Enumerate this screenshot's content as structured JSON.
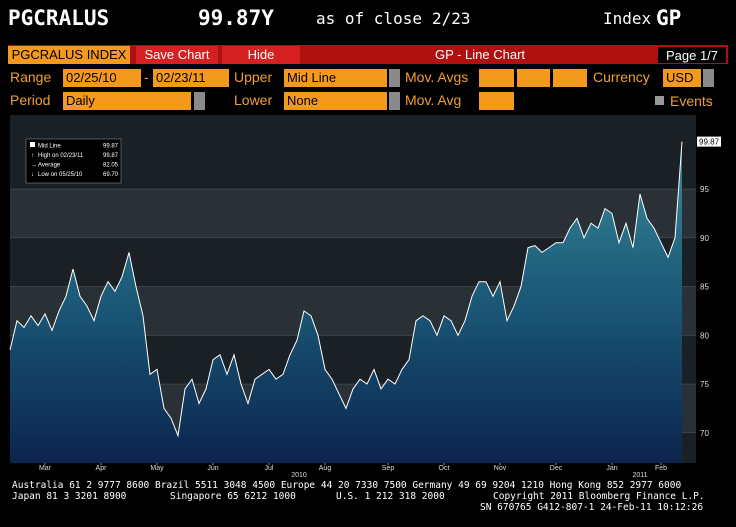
{
  "header": {
    "ticker": "PGCRALUS",
    "price": "99.87Y",
    "as_of": "as of close",
    "date": "2/23",
    "index_label": "Index",
    "index_code": "GP"
  },
  "toolbar": {
    "security": "PGCRALUS INDEX",
    "save": "Save Chart",
    "hide": "Hide",
    "title": "GP - Line Chart",
    "page": "Page 1/7"
  },
  "controls": {
    "range_label": "Range",
    "range_start": "02/25/10",
    "range_sep": "-",
    "range_end": "02/23/11",
    "upper_label": "Upper",
    "upper": "Mid Line",
    "mov_avgs_label": "Mov. Avgs",
    "currency_label": "Currency",
    "currency": "USD",
    "period_label": "Period",
    "period": "Daily",
    "lower_label": "Lower",
    "lower": "None",
    "mov_avg_label": "Mov. Avg",
    "events_label": "Events"
  },
  "chart_data": {
    "type": "line",
    "categories": [
      null,
      null,
      null,
      null,
      null,
      "Mar",
      null,
      null,
      null,
      null,
      null,
      null,
      null,
      "Apr",
      null,
      null,
      null,
      null,
      null,
      null,
      null,
      "May",
      null,
      null,
      null,
      null,
      null,
      null,
      null,
      "Jun",
      null,
      null,
      null,
      null,
      null,
      null,
      null,
      "Jul",
      null,
      null,
      null,
      null,
      null,
      null,
      null,
      "Aug",
      null,
      null,
      null,
      null,
      null,
      null,
      null,
      null,
      "Sep",
      null,
      null,
      null,
      null,
      null,
      null,
      null,
      "Oct",
      null,
      null,
      null,
      null,
      null,
      null,
      null,
      "Nov",
      null,
      null,
      null,
      null,
      null,
      null,
      null,
      "Dec",
      null,
      null,
      null,
      null,
      null,
      null,
      null,
      "Jan",
      null,
      null,
      null,
      null,
      null,
      null,
      "Feb",
      null,
      null,
      null
    ],
    "series": [
      {
        "name": "Mid Line",
        "color": "#ffffff",
        "values": [
          78.5,
          81.5,
          80.8,
          82,
          81,
          82.2,
          80.5,
          82.5,
          84,
          86.8,
          84,
          83,
          81.5,
          84,
          85.5,
          84.5,
          86,
          88.5,
          85,
          82,
          76,
          76.5,
          72.5,
          71.5,
          69.7,
          74.5,
          75.5,
          73,
          74.5,
          77.5,
          78,
          76,
          78,
          75,
          73,
          75.5,
          76,
          76.5,
          75.5,
          76,
          78,
          79.5,
          82.5,
          82,
          80,
          76.5,
          75.5,
          74,
          72.5,
          74.5,
          75.5,
          75,
          76.5,
          74.5,
          75.5,
          75,
          76.5,
          77.5,
          81.5,
          82,
          81.5,
          80,
          82,
          81.5,
          80,
          81.5,
          84,
          85.5,
          85.5,
          84,
          85.5,
          81.5,
          83,
          85,
          89,
          89.2,
          88.5,
          89,
          89.5,
          89.5,
          91,
          92,
          90,
          91.5,
          91,
          93,
          92.5,
          89.5,
          91.5,
          89,
          94.5,
          92,
          91,
          89.5,
          88,
          90,
          99.87
        ]
      }
    ],
    "ylim": [
      66.9,
      102.6
    ],
    "yticks": [
      70,
      75,
      80,
      85,
      90,
      95
    ],
    "legend_value": "99.87",
    "legend_stats": [
      {
        "label": "High on 02/23/11",
        "value": "99.87"
      },
      {
        "label": "Average",
        "value": "82.05"
      },
      {
        "label": "Low on 05/25/10",
        "value": "69.70"
      }
    ],
    "last_value_label": "99.87",
    "year_labels": [
      "2010",
      "2011"
    ]
  },
  "footer": {
    "line1": "Australia 61 2 9777 8600 Brazil 5511 3048 4500 Europe 44 20 7330 7500 Germany 49 69 9204 1210 Hong Kong 852 2977 6000",
    "japan": "Japan 81 3 3201 8900",
    "singapore": "Singapore 65 6212 1000",
    "us": "U.S. 1 212 318 2000",
    "copyright": "Copyright 2011 Bloomberg Finance L.P.",
    "sn": "SN 670765 G412-807-1 24-Feb-11 10:12:26"
  }
}
